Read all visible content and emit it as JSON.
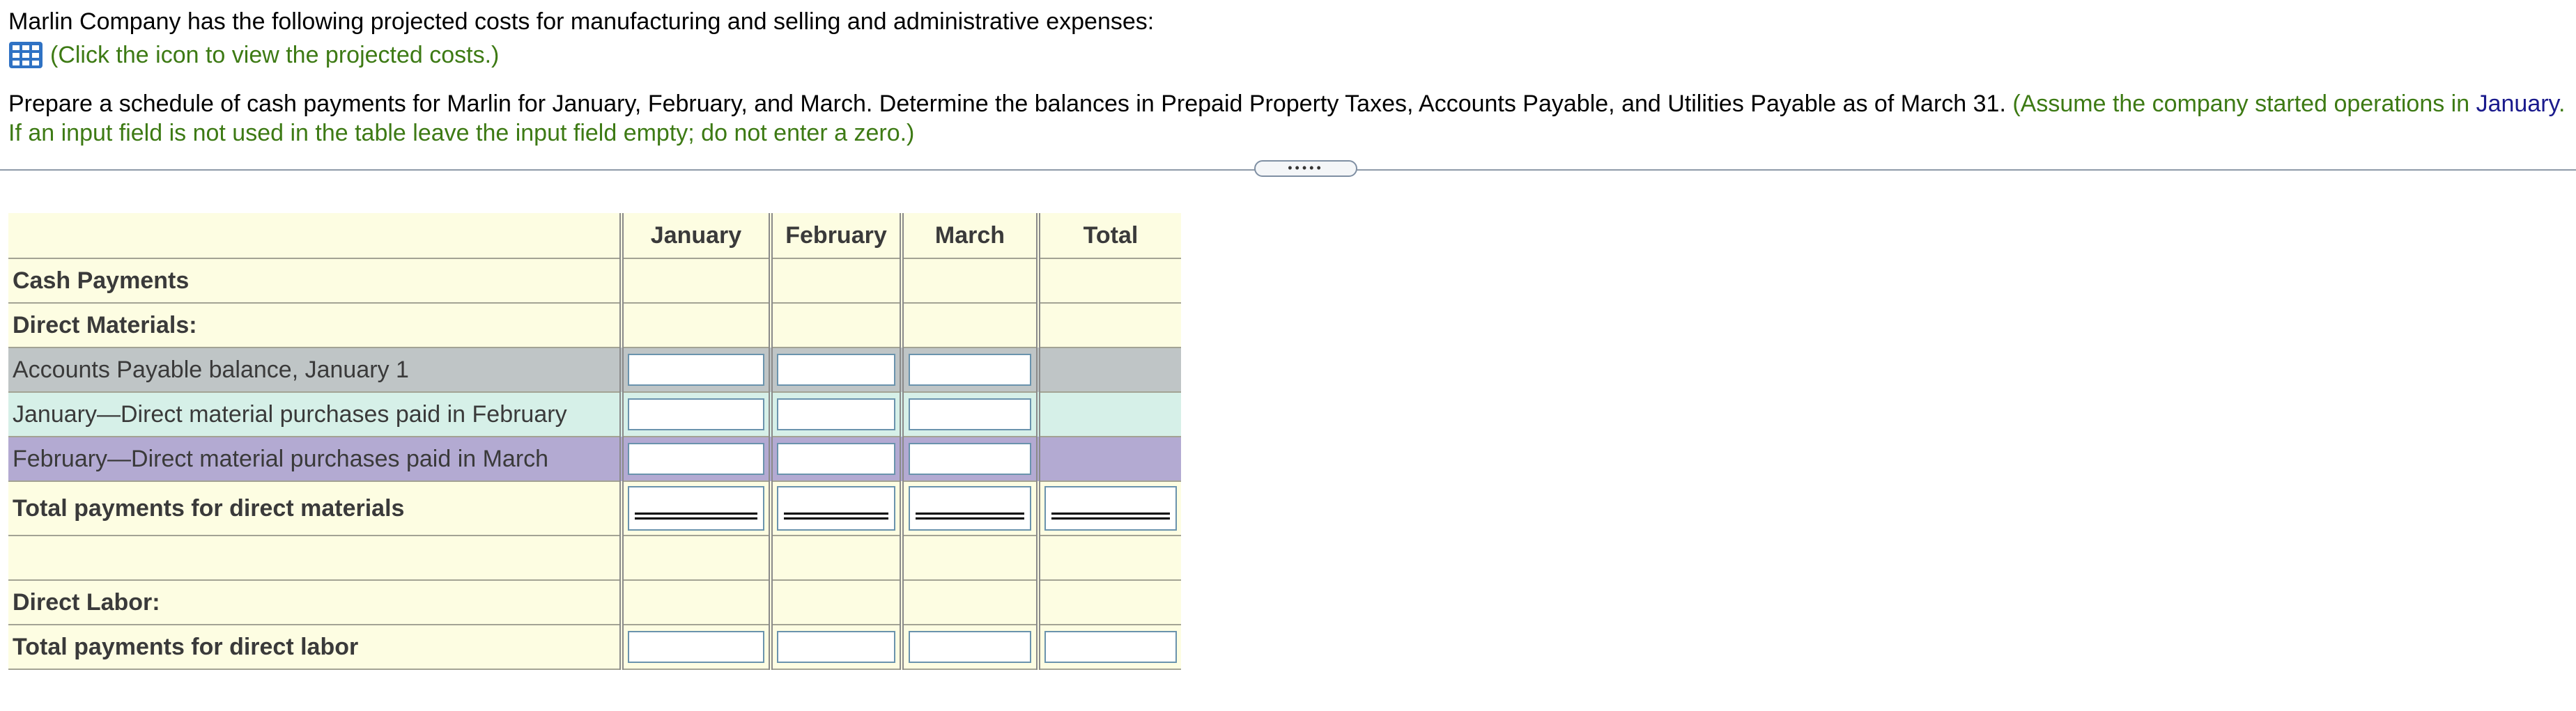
{
  "intro": {
    "text": "Marlin Company has the following projected costs for manufacturing and selling and administrative expenses:",
    "link_text": "(Click the icon to view the projected costs.)",
    "icon": "table-grid-icon"
  },
  "instructions": {
    "main": "Prepare a schedule of cash payments for Marlin for January, February, and March. Determine the balances in Prepaid Property Taxes, Accounts Payable, and Utilities Payable as of March 31. ",
    "green_1": "(Assume the company started operations in ",
    "blue": "January",
    "green_2": ". If an input field is not used in the table leave the input field empty; do not enter a zero.)"
  },
  "splitter": {
    "label": "•••••"
  },
  "table": {
    "columns": [
      "January",
      "February",
      "March",
      "Total"
    ],
    "rows": {
      "cash_payments": "Cash Payments",
      "direct_materials": "Direct Materials:",
      "ap_balance": "Accounts Payable balance, January 1",
      "jan_paid_feb": "January—Direct material purchases paid in February",
      "feb_paid_mar": "February—Direct material purchases paid in March",
      "total_dm": "Total payments for direct materials",
      "direct_labor": "Direct Labor:",
      "total_dl": "Total payments for direct labor"
    }
  },
  "colors": {
    "header_bg": "#fdfde2",
    "row_grey": "#bfc5c6",
    "row_mint": "#d6f0e8",
    "row_lavender": "#b3aad2",
    "link_green": "#3d7a14",
    "text_blue": "#1a1a8c"
  }
}
